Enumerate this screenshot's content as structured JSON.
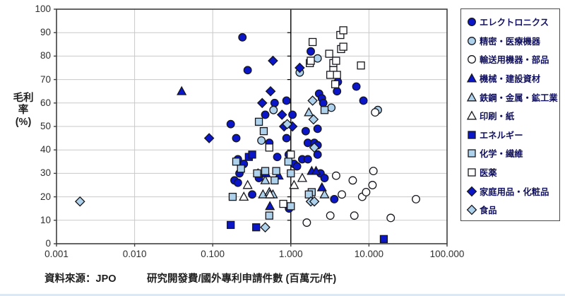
{
  "axis": {
    "y_title_main": "毛利率",
    "y_title_unit": "(%)",
    "y_ticks": [
      "0",
      "10",
      "20",
      "30",
      "40",
      "50",
      "60",
      "70",
      "80",
      "90",
      "100"
    ],
    "x_ticks": [
      "0.001",
      "0.010",
      "0.100",
      "1.000",
      "10.000",
      "100.000"
    ],
    "x_label": "研究開發費/國外專利申請件數 (百萬元/件)",
    "source": "資料來源：JPO"
  },
  "colors": {
    "navy": "#0b16c9",
    "light": "#aed2ec",
    "white": "#ffffff",
    "marker_stroke": "#16161d",
    "grid": "#c9c9c9",
    "border": "#3f3f3f",
    "refline": "#000000",
    "legend_text": "#10105e"
  },
  "chart_data": {
    "type": "scatter",
    "x_scale": "log",
    "xlim": [
      0.001,
      100
    ],
    "ylim": [
      0,
      100
    ],
    "y_gridline_step": 10,
    "x_gridlines_light": [
      0.01,
      0.1,
      10
    ],
    "x_refline": 1.0,
    "grid": "on",
    "legend_position": "right",
    "xlabel": "研究開發費/國外專利申請件數 (百萬元/件)",
    "ylabel": "毛利率(%)",
    "series": [
      {
        "name": "エレクトロニクス",
        "marker": "circle",
        "fill": "navy",
        "points": [
          [
            0.24,
            88
          ],
          [
            0.28,
            74
          ],
          [
            1.8,
            82
          ],
          [
            0.62,
            60
          ],
          [
            0.88,
            61
          ],
          [
            2.3,
            64
          ],
          [
            2.5,
            62
          ],
          [
            2.6,
            60
          ],
          [
            4.0,
            69
          ],
          [
            3.9,
            65
          ],
          [
            6.9,
            67
          ],
          [
            8.5,
            61
          ],
          [
            0.47,
            55
          ],
          [
            1.05,
            55
          ],
          [
            0.17,
            51
          ],
          [
            2.2,
            49
          ],
          [
            1.55,
            48
          ],
          [
            0.88,
            45
          ],
          [
            0.2,
            45
          ],
          [
            0.53,
            43
          ],
          [
            1.65,
            43
          ],
          [
            2.0,
            43
          ],
          [
            2.2,
            42
          ],
          [
            2.2,
            38
          ],
          [
            0.94,
            38
          ],
          [
            0.67,
            37
          ],
          [
            1.4,
            36
          ],
          [
            1.65,
            36
          ],
          [
            1.1,
            34
          ],
          [
            0.25,
            34
          ],
          [
            0.21,
            36
          ],
          [
            1.2,
            33
          ],
          [
            0.22,
            30
          ],
          [
            0.19,
            27
          ],
          [
            0.21,
            26
          ],
          [
            0.39,
            28
          ],
          [
            2.4,
            30
          ],
          [
            2.7,
            28
          ],
          [
            0.32,
            21
          ],
          [
            3.6,
            19
          ],
          [
            0.95,
            15
          ]
        ]
      },
      {
        "name": "精密・医療機器",
        "marker": "circle",
        "fill": "light",
        "points": [
          [
            2.2,
            79
          ],
          [
            1.3,
            73
          ],
          [
            3.3,
            58
          ],
          [
            0.6,
            57
          ],
          [
            13,
            57
          ],
          [
            0.42,
            44
          ]
        ]
      },
      {
        "name": "輸送用機器・部品",
        "marker": "circle",
        "fill": "white",
        "points": [
          [
            12,
            56
          ],
          [
            11.4,
            31
          ],
          [
            3.8,
            29
          ],
          [
            6.2,
            27
          ],
          [
            11.1,
            25
          ],
          [
            4.5,
            21
          ],
          [
            8.2,
            20
          ],
          [
            9.2,
            22
          ],
          [
            40,
            19
          ],
          [
            19,
            11
          ],
          [
            3.2,
            12
          ],
          [
            6.5,
            12
          ],
          [
            1.6,
            9
          ]
        ]
      },
      {
        "name": "機械・建設資材",
        "marker": "triangle",
        "fill": "navy",
        "points": [
          [
            0.04,
            65
          ],
          [
            0.48,
            30
          ],
          [
            0.7,
            29
          ],
          [
            1.85,
            31
          ],
          [
            2.1,
            31
          ],
          [
            2.5,
            24
          ],
          [
            0.54,
            16
          ]
        ]
      },
      {
        "name": "鉄鋼・金属・鉱工業",
        "marker": "triangle",
        "fill": "light",
        "points": [
          [
            1.7,
            56
          ],
          [
            0.47,
            27
          ],
          [
            0.44,
            21
          ],
          [
            0.53,
            22
          ],
          [
            0.59,
            21
          ],
          [
            2.7,
            21
          ]
        ]
      },
      {
        "name": "印刷・紙",
        "marker": "triangle",
        "fill": "white",
        "points": [
          [
            0.38,
            30
          ],
          [
            0.28,
            25
          ],
          [
            0.25,
            20
          ],
          [
            0.54,
            21
          ],
          [
            1.4,
            28
          ],
          [
            1.1,
            25
          ]
        ]
      },
      {
        "name": "エネルギー",
        "marker": "square",
        "fill": "navy",
        "points": [
          [
            0.29,
            37
          ],
          [
            0.32,
            38
          ],
          [
            0.17,
            8
          ],
          [
            0.36,
            7
          ],
          [
            15.5,
            2
          ]
        ]
      },
      {
        "name": "化学・繊維",
        "marker": "square",
        "fill": "light",
        "points": [
          [
            0.39,
            52
          ],
          [
            0.45,
            48
          ],
          [
            2.7,
            57
          ],
          [
            0.93,
            35
          ],
          [
            0.2,
            35
          ],
          [
            0.23,
            32
          ],
          [
            0.37,
            30
          ],
          [
            0.47,
            31
          ],
          [
            0.65,
            31
          ],
          [
            0.62,
            27
          ],
          [
            1.0,
            30
          ],
          [
            1.85,
            22
          ],
          [
            1.7,
            21
          ],
          [
            0.18,
            20
          ],
          [
            1.0,
            16
          ],
          [
            0.53,
            12
          ]
        ]
      },
      {
        "name": "医薬",
        "marker": "square",
        "fill": "white",
        "points": [
          [
            1.9,
            86
          ],
          [
            4.3,
            89
          ],
          [
            4.7,
            91
          ],
          [
            3.1,
            81
          ],
          [
            4.4,
            83
          ],
          [
            4.7,
            84
          ],
          [
            1.75,
            77
          ],
          [
            1.8,
            78
          ],
          [
            3.5,
            77
          ],
          [
            3.8,
            78
          ],
          [
            3.5,
            74
          ],
          [
            3.2,
            72
          ],
          [
            3.9,
            72
          ],
          [
            3.7,
            68
          ],
          [
            7.9,
            76
          ],
          [
            0.53,
            41
          ],
          [
            1.0,
            38
          ],
          [
            0.8,
            17
          ]
        ]
      },
      {
        "name": "家庭用品・化粧品",
        "marker": "diamond",
        "fill": "navy",
        "points": [
          [
            0.59,
            78
          ],
          [
            1.3,
            75
          ],
          [
            0.55,
            65
          ],
          [
            0.43,
            60
          ],
          [
            0.77,
            55
          ],
          [
            0.82,
            50
          ],
          [
            1.05,
            50
          ],
          [
            0.09,
            45
          ]
        ]
      },
      {
        "name": "食品",
        "marker": "diamond",
        "fill": "light",
        "points": [
          [
            0.002,
            18
          ],
          [
            1.9,
            61
          ],
          [
            1.95,
            53
          ],
          [
            0.9,
            51
          ],
          [
            2.0,
            41
          ],
          [
            1.8,
            18
          ],
          [
            2.0,
            18
          ],
          [
            0.47,
            7
          ]
        ]
      }
    ]
  }
}
